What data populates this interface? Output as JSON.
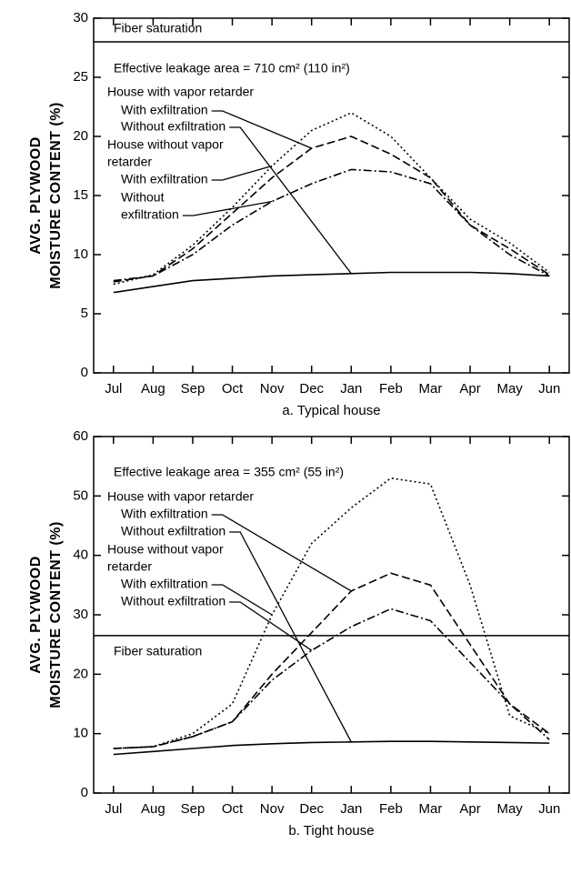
{
  "chart_data": [
    {
      "type": "line",
      "caption": "a. Typical house",
      "ylabel": [
        "AVG. PLYWOOD",
        "MOISTURE CONTENT (%)"
      ],
      "categories": [
        "Jul",
        "Aug",
        "Sep",
        "Oct",
        "Nov",
        "Dec",
        "Jan",
        "Feb",
        "Mar",
        "Apr",
        "May",
        "Jun"
      ],
      "ylim": [
        0,
        30
      ],
      "yticks": [
        0,
        5,
        10,
        15,
        20,
        25,
        30
      ],
      "reference_line": {
        "label": "Fiber saturation",
        "value": 28
      },
      "series": [
        {
          "style": "dotted",
          "color": "#000",
          "values": [
            7.5,
            8.3,
            10.8,
            14,
            17.5,
            20.5,
            22,
            20,
            16.5,
            13,
            11,
            8.5
          ]
        },
        {
          "style": "dashed",
          "color": "#000",
          "values": [
            7.7,
            8.2,
            10.5,
            13.5,
            16.5,
            19,
            20,
            18.5,
            16.5,
            12.5,
            10.5,
            8.3
          ]
        },
        {
          "style": "dashdot",
          "color": "#000",
          "values": [
            7.8,
            8.2,
            10,
            12.5,
            14.5,
            16,
            17.2,
            17,
            16,
            12.5,
            10,
            8.2
          ]
        },
        {
          "style": "solid",
          "color": "#000",
          "values": [
            6.8,
            7.3,
            7.8,
            8.0,
            8.2,
            8.3,
            8.4,
            8.5,
            8.5,
            8.5,
            8.4,
            8.2
          ]
        }
      ],
      "annotations": [
        [
          "Effective leakage area = 710 cm² (110 in²)"
        ],
        [
          "House with vapor retarder"
        ],
        [
          "With exfiltration"
        ],
        [
          "Without exfiltration"
        ],
        [
          "House without vapor",
          "retarder"
        ],
        [
          "With exfiltration"
        ],
        [
          "Without",
          "exfiltration"
        ]
      ]
    },
    {
      "type": "line",
      "caption": "b. Tight house",
      "ylabel": [
        "AVG. PLYWOOD",
        "MOISTURE CONTENT (%)"
      ],
      "categories": [
        "Jul",
        "Aug",
        "Sep",
        "Oct",
        "Nov",
        "Dec",
        "Jan",
        "Feb",
        "Mar",
        "Apr",
        "May",
        "Jun"
      ],
      "ylim": [
        0,
        60
      ],
      "yticks": [
        0,
        10,
        20,
        30,
        40,
        50,
        60
      ],
      "reference_line": {
        "label": "Fiber saturation",
        "value": 26.5
      },
      "series": [
        {
          "style": "dotted",
          "color": "#000",
          "values": [
            7.5,
            7.8,
            10,
            15,
            30,
            42,
            48,
            53,
            52,
            35,
            13,
            10
          ]
        },
        {
          "style": "dashed",
          "color": "#000",
          "values": [
            7.5,
            7.8,
            9.5,
            12,
            20,
            27,
            34,
            37,
            35,
            25,
            15,
            10
          ]
        },
        {
          "style": "dashdot",
          "color": "#000",
          "values": [
            7.5,
            7.8,
            9.5,
            12,
            19,
            24,
            28,
            31,
            29,
            22,
            15,
            9
          ]
        },
        {
          "style": "solid",
          "color": "#000",
          "values": [
            6.5,
            7,
            7.5,
            8,
            8.3,
            8.5,
            8.6,
            8.7,
            8.7,
            8.6,
            8.5,
            8.4
          ]
        }
      ],
      "annotations": [
        [
          "Effective leakage area = 355 cm² (55 in²)"
        ],
        [
          "House with vapor retarder"
        ],
        [
          "With exfiltration"
        ],
        [
          "Without exfiltration"
        ],
        [
          "House without vapor",
          "retarder"
        ],
        [
          "With exfiltration"
        ],
        [
          "Without exfiltration"
        ]
      ]
    }
  ]
}
